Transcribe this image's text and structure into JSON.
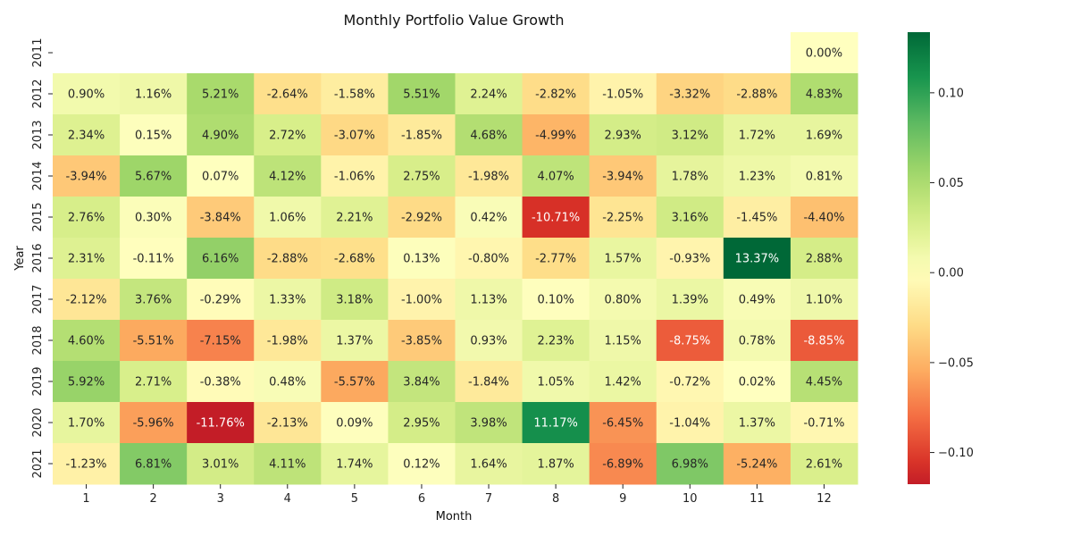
{
  "chart_data": {
    "type": "heatmap",
    "title": "Monthly Portfolio Value Growth",
    "xlabel": "Month",
    "ylabel": "Year",
    "x_categories": [
      "1",
      "2",
      "3",
      "4",
      "5",
      "6",
      "7",
      "8",
      "9",
      "10",
      "11",
      "12"
    ],
    "y_categories": [
      "2011",
      "2012",
      "2013",
      "2014",
      "2015",
      "2016",
      "2017",
      "2018",
      "2019",
      "2020",
      "2021"
    ],
    "values": [
      [
        null,
        null,
        null,
        null,
        null,
        null,
        null,
        null,
        null,
        null,
        null,
        0.0
      ],
      [
        0.009,
        0.0116,
        0.0521,
        -0.0264,
        -0.0158,
        0.0551,
        0.0224,
        -0.0282,
        -0.0105,
        -0.0332,
        -0.0288,
        0.0483
      ],
      [
        0.0234,
        0.0015,
        0.049,
        0.0272,
        -0.0307,
        -0.0185,
        0.0468,
        -0.0499,
        0.0293,
        0.0312,
        0.0172,
        0.0169
      ],
      [
        -0.0394,
        0.0567,
        0.0007,
        0.0412,
        -0.0106,
        0.0275,
        -0.0198,
        0.0407,
        -0.0394,
        0.0178,
        0.0123,
        0.0081
      ],
      [
        0.0276,
        0.003,
        -0.0384,
        0.0106,
        0.0221,
        -0.0292,
        0.0042,
        -0.1071,
        -0.0225,
        0.0316,
        -0.0145,
        -0.044
      ],
      [
        0.0231,
        -0.0011,
        0.0616,
        -0.0288,
        -0.0268,
        0.0013,
        -0.008,
        -0.0277,
        0.0157,
        -0.0093,
        0.1337,
        0.0288
      ],
      [
        -0.0212,
        0.0376,
        -0.0029,
        0.0133,
        0.0318,
        -0.01,
        0.0113,
        0.001,
        0.008,
        0.0139,
        0.0049,
        0.011
      ],
      [
        0.046,
        -0.0551,
        -0.0715,
        -0.0198,
        0.0137,
        -0.0385,
        0.0093,
        0.0223,
        0.0115,
        -0.0875,
        0.0078,
        -0.0885
      ],
      [
        0.0592,
        0.0271,
        -0.0038,
        0.0048,
        -0.0557,
        0.0384,
        -0.0184,
        0.0105,
        0.0142,
        -0.0072,
        0.0002,
        0.0445
      ],
      [
        0.017,
        -0.0596,
        -0.1176,
        -0.0213,
        0.0009,
        0.0295,
        0.0398,
        0.1117,
        -0.0645,
        -0.0104,
        0.0137,
        -0.0071
      ],
      [
        -0.0123,
        0.0681,
        0.0301,
        0.0411,
        0.0174,
        0.0012,
        0.0164,
        0.0187,
        -0.0689,
        0.0698,
        -0.0524,
        0.0261
      ]
    ],
    "labels": [
      [
        null,
        null,
        null,
        null,
        null,
        null,
        null,
        null,
        null,
        null,
        null,
        "0.00%"
      ],
      [
        "0.90%",
        "1.16%",
        "5.21%",
        "-2.64%",
        "-1.58%",
        "5.51%",
        "2.24%",
        "-2.82%",
        "-1.05%",
        "-3.32%",
        "-2.88%",
        "4.83%"
      ],
      [
        "2.34%",
        "0.15%",
        "4.90%",
        "2.72%",
        "-3.07%",
        "-1.85%",
        "4.68%",
        "-4.99%",
        "2.93%",
        "3.12%",
        "1.72%",
        "1.69%"
      ],
      [
        "-3.94%",
        "5.67%",
        "0.07%",
        "4.12%",
        "-1.06%",
        "2.75%",
        "-1.98%",
        "4.07%",
        "-3.94%",
        "1.78%",
        "1.23%",
        "0.81%"
      ],
      [
        "2.76%",
        "0.30%",
        "-3.84%",
        "1.06%",
        "2.21%",
        "-2.92%",
        "0.42%",
        "-10.71%",
        "-2.25%",
        "3.16%",
        "-1.45%",
        "-4.40%"
      ],
      [
        "2.31%",
        "-0.11%",
        "6.16%",
        "-2.88%",
        "-2.68%",
        "0.13%",
        "-0.80%",
        "-2.77%",
        "1.57%",
        "-0.93%",
        "13.37%",
        "2.88%"
      ],
      [
        "-2.12%",
        "3.76%",
        "-0.29%",
        "1.33%",
        "3.18%",
        "-1.00%",
        "1.13%",
        "0.10%",
        "0.80%",
        "1.39%",
        "0.49%",
        "1.10%"
      ],
      [
        "4.60%",
        "-5.51%",
        "-7.15%",
        "-1.98%",
        "1.37%",
        "-3.85%",
        "0.93%",
        "2.23%",
        "1.15%",
        "-8.75%",
        "0.78%",
        "-8.85%"
      ],
      [
        "5.92%",
        "2.71%",
        "-0.38%",
        "0.48%",
        "-5.57%",
        "3.84%",
        "-1.84%",
        "1.05%",
        "1.42%",
        "-0.72%",
        "0.02%",
        "4.45%"
      ],
      [
        "1.70%",
        "-5.96%",
        "-11.76%",
        "-2.13%",
        "0.09%",
        "2.95%",
        "3.98%",
        "11.17%",
        "-6.45%",
        "-1.04%",
        "1.37%",
        "-0.71%"
      ],
      [
        "-1.23%",
        "6.81%",
        "3.01%",
        "4.11%",
        "1.74%",
        "0.12%",
        "1.64%",
        "1.87%",
        "-6.89%",
        "6.98%",
        "-5.24%",
        "2.61%"
      ]
    ],
    "colormap": "RdYlGn",
    "vmin": -0.1176,
    "vmax": 0.1337,
    "colorbar_ticks": [
      {
        "value": -0.1,
        "label": "−0.10"
      },
      {
        "value": -0.05,
        "label": "−0.05"
      },
      {
        "value": 0.0,
        "label": "0.00"
      },
      {
        "value": 0.05,
        "label": "0.05"
      },
      {
        "value": 0.1,
        "label": "0.10"
      }
    ]
  }
}
